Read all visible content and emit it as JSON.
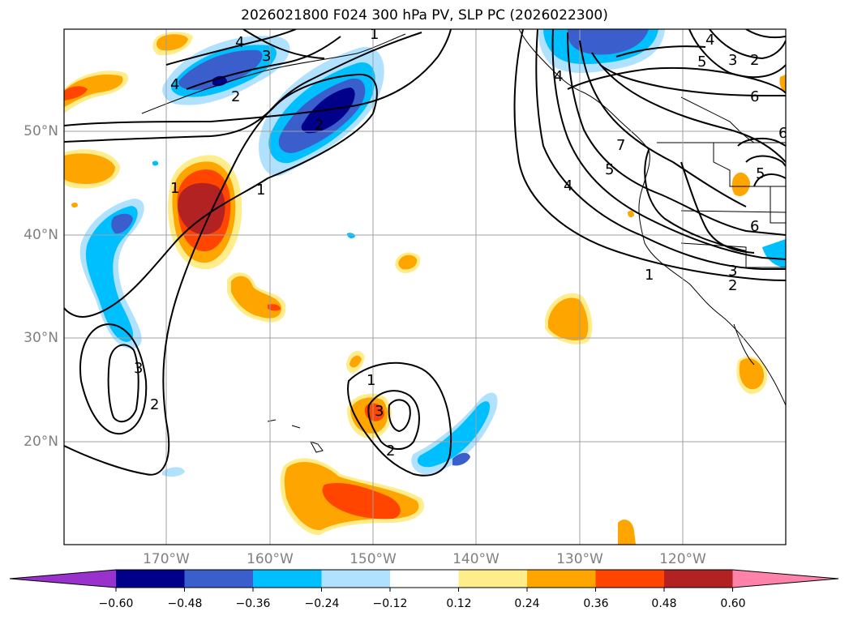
{
  "title": "2026021800 F024 300 hPa PV, SLP PC (2026022300)",
  "lat_labels": [
    "50°N",
    "40°N",
    "30°N",
    "20°N"
  ],
  "lon_labels": [
    "170°W",
    "160°W",
    "150°W",
    "140°W",
    "130°W",
    "120°W"
  ],
  "colorbar": {
    "colors": [
      "#9932cc",
      "#00008b",
      "#3a5fcd",
      "#00bfff",
      "#b0e2ff",
      "#ffffff",
      "#ffec8b",
      "#ffa500",
      "#ff4500",
      "#b22222",
      "#ff82ab"
    ],
    "ticks": [
      "−0.60",
      "−0.48",
      "−0.36",
      "−0.24",
      "−0.12",
      "0.12",
      "0.24",
      "0.36",
      "0.48",
      "0.60"
    ]
  },
  "contour_labels": [
    "1",
    "2",
    "3",
    "4",
    "5",
    "6",
    "7"
  ]
}
